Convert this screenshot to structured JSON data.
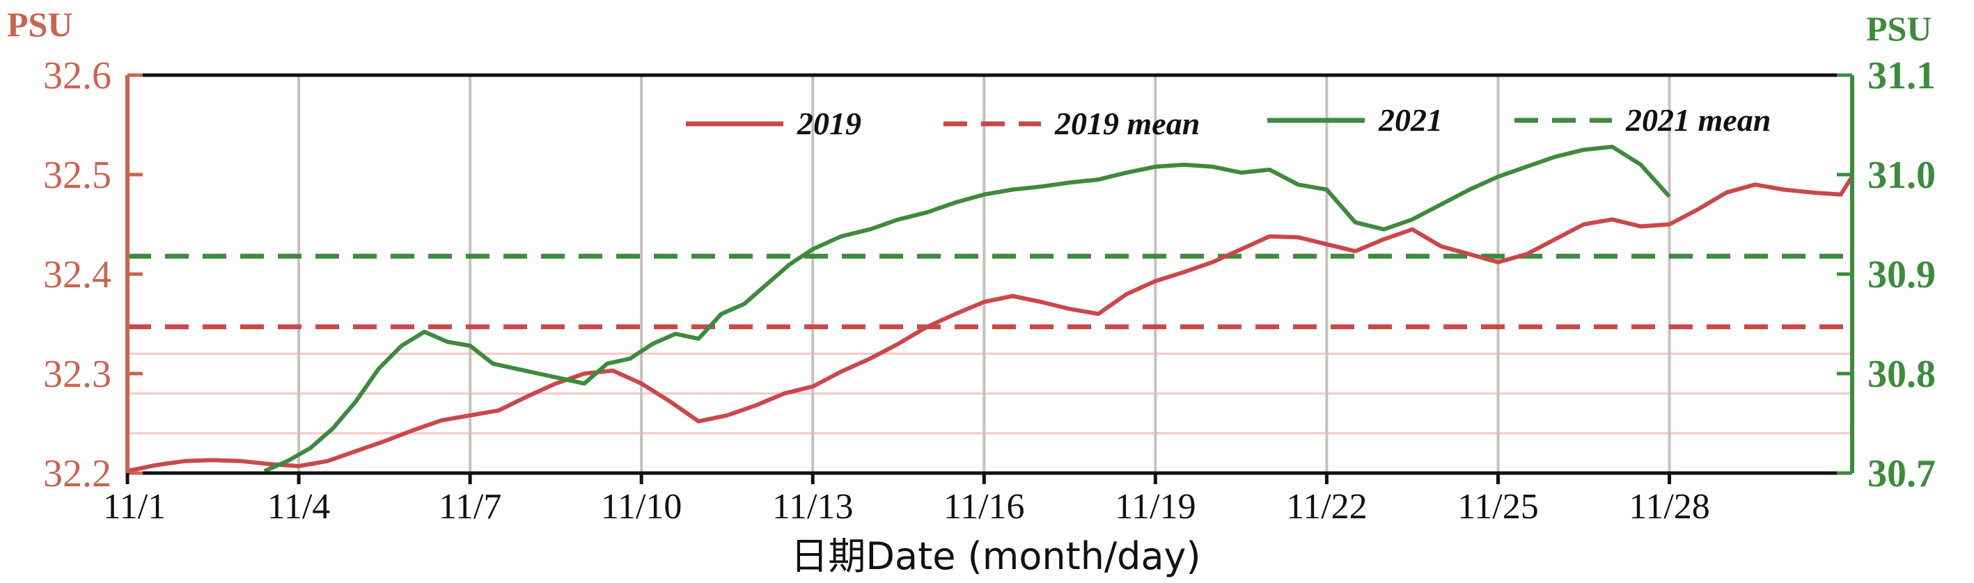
{
  "chart_data": {
    "type": "line",
    "xlabel": "日期Date (month/day)",
    "x_ticks": [
      "11/1",
      "11/4",
      "11/7",
      "11/10",
      "11/13",
      "11/16",
      "11/19",
      "11/22",
      "11/25",
      "11/28"
    ],
    "x_tick_days": [
      1,
      4,
      7,
      10,
      13,
      16,
      19,
      22,
      25,
      28
    ],
    "xlim": [
      1,
      31.2
    ],
    "y_left": {
      "unit": "PSU",
      "ylim": [
        32.2,
        32.6
      ],
      "ticks": [
        "32.2",
        "32.3",
        "32.4",
        "32.5",
        "32.6"
      ],
      "color": "#c9644f"
    },
    "y_right": {
      "unit": "PSU",
      "ylim": [
        30.7,
        31.1
      ],
      "ticks": [
        "30.7",
        "30.8",
        "30.9",
        "31.0",
        "31.1"
      ],
      "color": "#3e8a3e"
    },
    "grid": {
      "vertical": true,
      "horizontal_pink": true
    },
    "legend": {
      "placement": "top",
      "entries": [
        "2019",
        "2019 mean",
        "2021",
        "2021 mean"
      ]
    },
    "series": [
      {
        "name": "2019",
        "axis": "left",
        "style": "solid",
        "color": "#c9484a",
        "x": [
          1,
          1.5,
          2,
          2.5,
          3,
          3.5,
          4,
          4.5,
          5,
          5.5,
          6,
          6.5,
          7,
          7.5,
          8,
          8.5,
          9,
          9.5,
          10,
          10.5,
          11,
          11.5,
          12,
          12.5,
          13,
          13.5,
          14,
          14.5,
          15,
          15.5,
          16,
          16.5,
          17,
          17.5,
          18,
          18.5,
          19,
          19.5,
          20,
          20.5,
          21,
          21.5,
          22,
          22.5,
          23,
          23.5,
          24,
          24.5,
          25,
          25.5,
          26,
          26.5,
          27,
          27.5,
          28,
          28.5,
          29,
          29.5,
          30,
          30.5,
          31,
          31.2
        ],
        "y": [
          32.202,
          32.208,
          32.212,
          32.213,
          32.212,
          32.209,
          32.207,
          32.212,
          32.222,
          32.232,
          32.243,
          32.253,
          32.258,
          32.263,
          32.277,
          32.29,
          32.3,
          32.303,
          32.29,
          32.272,
          32.252,
          32.258,
          32.268,
          32.28,
          32.287,
          32.302,
          32.315,
          32.33,
          32.347,
          32.36,
          32.372,
          32.378,
          32.372,
          32.365,
          32.36,
          32.38,
          32.393,
          32.402,
          32.412,
          32.425,
          32.438,
          32.437,
          32.43,
          32.423,
          32.435,
          32.445,
          32.428,
          32.42,
          32.412,
          32.42,
          32.435,
          32.45,
          32.455,
          32.448,
          32.45,
          32.465,
          32.482,
          32.49,
          32.485,
          32.482,
          32.48,
          32.498
        ]
      },
      {
        "name": "2019 mean",
        "axis": "left",
        "style": "dashed",
        "color": "#c9484a",
        "x": [
          1,
          31.2
        ],
        "y": [
          32.347,
          32.347
        ]
      },
      {
        "name": "2021",
        "axis": "right",
        "style": "solid",
        "color": "#3e8a3e",
        "x": [
          3.4,
          3.8,
          4.2,
          4.6,
          5,
          5.4,
          5.8,
          6.2,
          6.6,
          7,
          7.4,
          7.8,
          8.2,
          8.6,
          9,
          9.4,
          9.8,
          10.2,
          10.6,
          11,
          11.4,
          11.8,
          12.2,
          12.6,
          13,
          13.5,
          14,
          14.5,
          15,
          15.5,
          16,
          16.5,
          17,
          17.5,
          18,
          18.5,
          19,
          19.5,
          20,
          20.5,
          21,
          21.5,
          22,
          22.5,
          23,
          23.5,
          24,
          24.5,
          25,
          25.5,
          26,
          26.5,
          27,
          27.5,
          28
        ],
        "y": [
          30.702,
          30.712,
          30.725,
          30.745,
          30.772,
          30.805,
          30.828,
          30.842,
          30.832,
          30.828,
          30.81,
          30.805,
          30.8,
          30.795,
          30.79,
          30.81,
          30.815,
          30.83,
          30.84,
          30.835,
          30.86,
          30.87,
          30.89,
          30.91,
          30.925,
          30.938,
          30.945,
          30.955,
          30.962,
          30.972,
          30.98,
          30.985,
          30.988,
          30.992,
          30.995,
          31.002,
          31.008,
          31.01,
          31.008,
          31.002,
          31.005,
          30.99,
          30.985,
          30.952,
          30.945,
          30.955,
          30.97,
          30.985,
          30.998,
          31.008,
          31.018,
          31.025,
          31.028,
          31.01,
          30.978
        ]
      },
      {
        "name": "2021 mean",
        "axis": "right",
        "style": "dashed",
        "color": "#3e8a3e",
        "x": [
          1,
          31.2
        ],
        "y": [
          30.918,
          30.918
        ]
      }
    ]
  }
}
